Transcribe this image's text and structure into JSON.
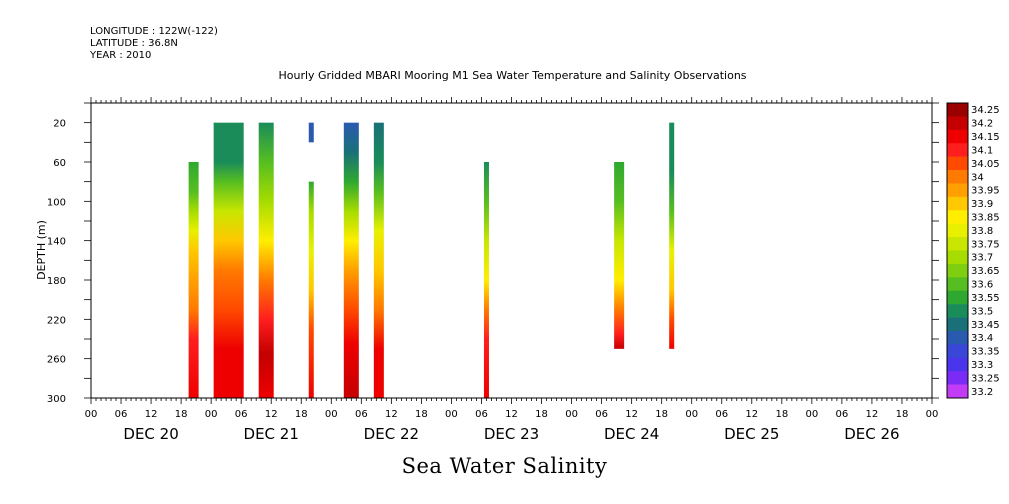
{
  "header": {
    "longitude": "LONGITUDE : 122W(-122)",
    "latitude": "LATITUDE : 36.8N",
    "year": "YEAR : 2010"
  },
  "chart_data": {
    "type": "heatmap",
    "title": "Hourly Gridded MBARI Mooring M1 Sea Water Temperature and Salinity Observations",
    "bottom_title": "Sea Water Salinity",
    "ylabel": "DEPTH (m)",
    "ylim": [
      300,
      0
    ],
    "yticks": [
      20,
      60,
      100,
      140,
      180,
      220,
      260,
      300
    ],
    "xlim_hours": [
      0,
      168
    ],
    "xtick_hour_labels": [
      "00",
      "06",
      "12",
      "18",
      "00",
      "06",
      "12",
      "18",
      "00",
      "06",
      "12",
      "18",
      "00",
      "06",
      "12",
      "18",
      "00",
      "06",
      "12",
      "18",
      "00",
      "06",
      "12",
      "18",
      "00",
      "06",
      "12",
      "18",
      "00"
    ],
    "day_labels": [
      "DEC 20",
      "DEC 21",
      "DEC 22",
      "DEC 23",
      "DEC 24",
      "DEC 25",
      "DEC 26"
    ],
    "colorbar": {
      "levels": [
        "34.25",
        "34.2",
        "34.15",
        "34.1",
        "34.05",
        "34",
        "33.95",
        "33.9",
        "33.85",
        "33.8",
        "33.75",
        "33.7",
        "33.65",
        "33.6",
        "33.55",
        "33.5",
        "33.45",
        "33.4",
        "33.35",
        "33.3",
        "33.25",
        "33.2"
      ],
      "colors": [
        "#9a0000",
        "#c40000",
        "#ee0000",
        "#ff1e1e",
        "#ff4a00",
        "#ff7a00",
        "#ffa000",
        "#ffc800",
        "#ffee00",
        "#e8f000",
        "#c8e600",
        "#a6dc00",
        "#7fce10",
        "#56be20",
        "#2ea830",
        "#1a8c5a",
        "#1a7078",
        "#2a5ab0",
        "#3a46d8",
        "#4a34ec",
        "#7a2cf4",
        "#c23cf6"
      ]
    },
    "columns": [
      {
        "start_hr": 19.5,
        "end_hr": 21.5,
        "top_depth": 60,
        "bottom_depth": 300,
        "profile": [
          [
            60,
            33.55
          ],
          [
            90,
            33.6
          ],
          [
            110,
            33.7
          ],
          [
            130,
            33.8
          ],
          [
            150,
            33.9
          ],
          [
            180,
            33.95
          ],
          [
            210,
            34.0
          ],
          [
            240,
            34.1
          ],
          [
            300,
            34.15
          ]
        ]
      },
      {
        "start_hr": 24.5,
        "end_hr": 30.5,
        "top_depth": 20,
        "bottom_depth": 300,
        "profile": [
          [
            20,
            33.5
          ],
          [
            60,
            33.5
          ],
          [
            80,
            33.6
          ],
          [
            110,
            33.75
          ],
          [
            140,
            33.9
          ],
          [
            170,
            34.0
          ],
          [
            210,
            34.05
          ],
          [
            250,
            34.15
          ],
          [
            300,
            34.15
          ]
        ]
      },
      {
        "start_hr": 33.5,
        "end_hr": 36.5,
        "top_depth": 20,
        "bottom_depth": 300,
        "profile": [
          [
            20,
            33.5
          ],
          [
            60,
            33.6
          ],
          [
            100,
            33.7
          ],
          [
            140,
            33.85
          ],
          [
            180,
            34.0
          ],
          [
            220,
            34.1
          ],
          [
            255,
            34.2
          ],
          [
            300,
            34.15
          ]
        ]
      },
      {
        "start_hr": 43.5,
        "end_hr": 44.5,
        "top_depth": 20,
        "bottom_depth": 40,
        "profile": [
          [
            20,
            33.4
          ],
          [
            40,
            33.4
          ]
        ]
      },
      {
        "start_hr": 43.5,
        "end_hr": 44.5,
        "top_depth": 80,
        "bottom_depth": 300,
        "profile": [
          [
            80,
            33.55
          ],
          [
            110,
            33.7
          ],
          [
            150,
            33.8
          ],
          [
            190,
            33.9
          ],
          [
            230,
            34.05
          ],
          [
            300,
            34.15
          ]
        ]
      },
      {
        "start_hr": 50.5,
        "end_hr": 53.5,
        "top_depth": 20,
        "bottom_depth": 300,
        "profile": [
          [
            20,
            33.4
          ],
          [
            50,
            33.45
          ],
          [
            80,
            33.55
          ],
          [
            110,
            33.7
          ],
          [
            140,
            33.85
          ],
          [
            170,
            33.95
          ],
          [
            210,
            34.05
          ],
          [
            245,
            34.15
          ],
          [
            300,
            34.2
          ]
        ]
      },
      {
        "start_hr": 56.5,
        "end_hr": 58.5,
        "top_depth": 20,
        "bottom_depth": 300,
        "profile": [
          [
            20,
            33.45
          ],
          [
            60,
            33.5
          ],
          [
            90,
            33.6
          ],
          [
            130,
            33.8
          ],
          [
            170,
            33.9
          ],
          [
            210,
            34.0
          ],
          [
            250,
            34.15
          ],
          [
            300,
            34.15
          ]
        ]
      },
      {
        "start_hr": 78.5,
        "end_hr": 79.5,
        "top_depth": 60,
        "bottom_depth": 300,
        "profile": [
          [
            60,
            33.5
          ],
          [
            100,
            33.6
          ],
          [
            140,
            33.75
          ],
          [
            180,
            33.85
          ],
          [
            210,
            34.0
          ],
          [
            240,
            34.1
          ],
          [
            300,
            34.15
          ]
        ]
      },
      {
        "start_hr": 104.5,
        "end_hr": 106.5,
        "top_depth": 60,
        "bottom_depth": 250,
        "profile": [
          [
            60,
            33.55
          ],
          [
            100,
            33.6
          ],
          [
            140,
            33.75
          ],
          [
            180,
            33.85
          ],
          [
            210,
            34.0
          ],
          [
            235,
            34.1
          ],
          [
            250,
            34.2
          ]
        ]
      },
      {
        "start_hr": 115.5,
        "end_hr": 116.5,
        "top_depth": 20,
        "bottom_depth": 250,
        "profile": [
          [
            20,
            33.5
          ],
          [
            70,
            33.5
          ],
          [
            110,
            33.6
          ],
          [
            150,
            33.8
          ],
          [
            190,
            33.9
          ],
          [
            220,
            34.05
          ],
          [
            250,
            34.15
          ]
        ]
      }
    ]
  }
}
